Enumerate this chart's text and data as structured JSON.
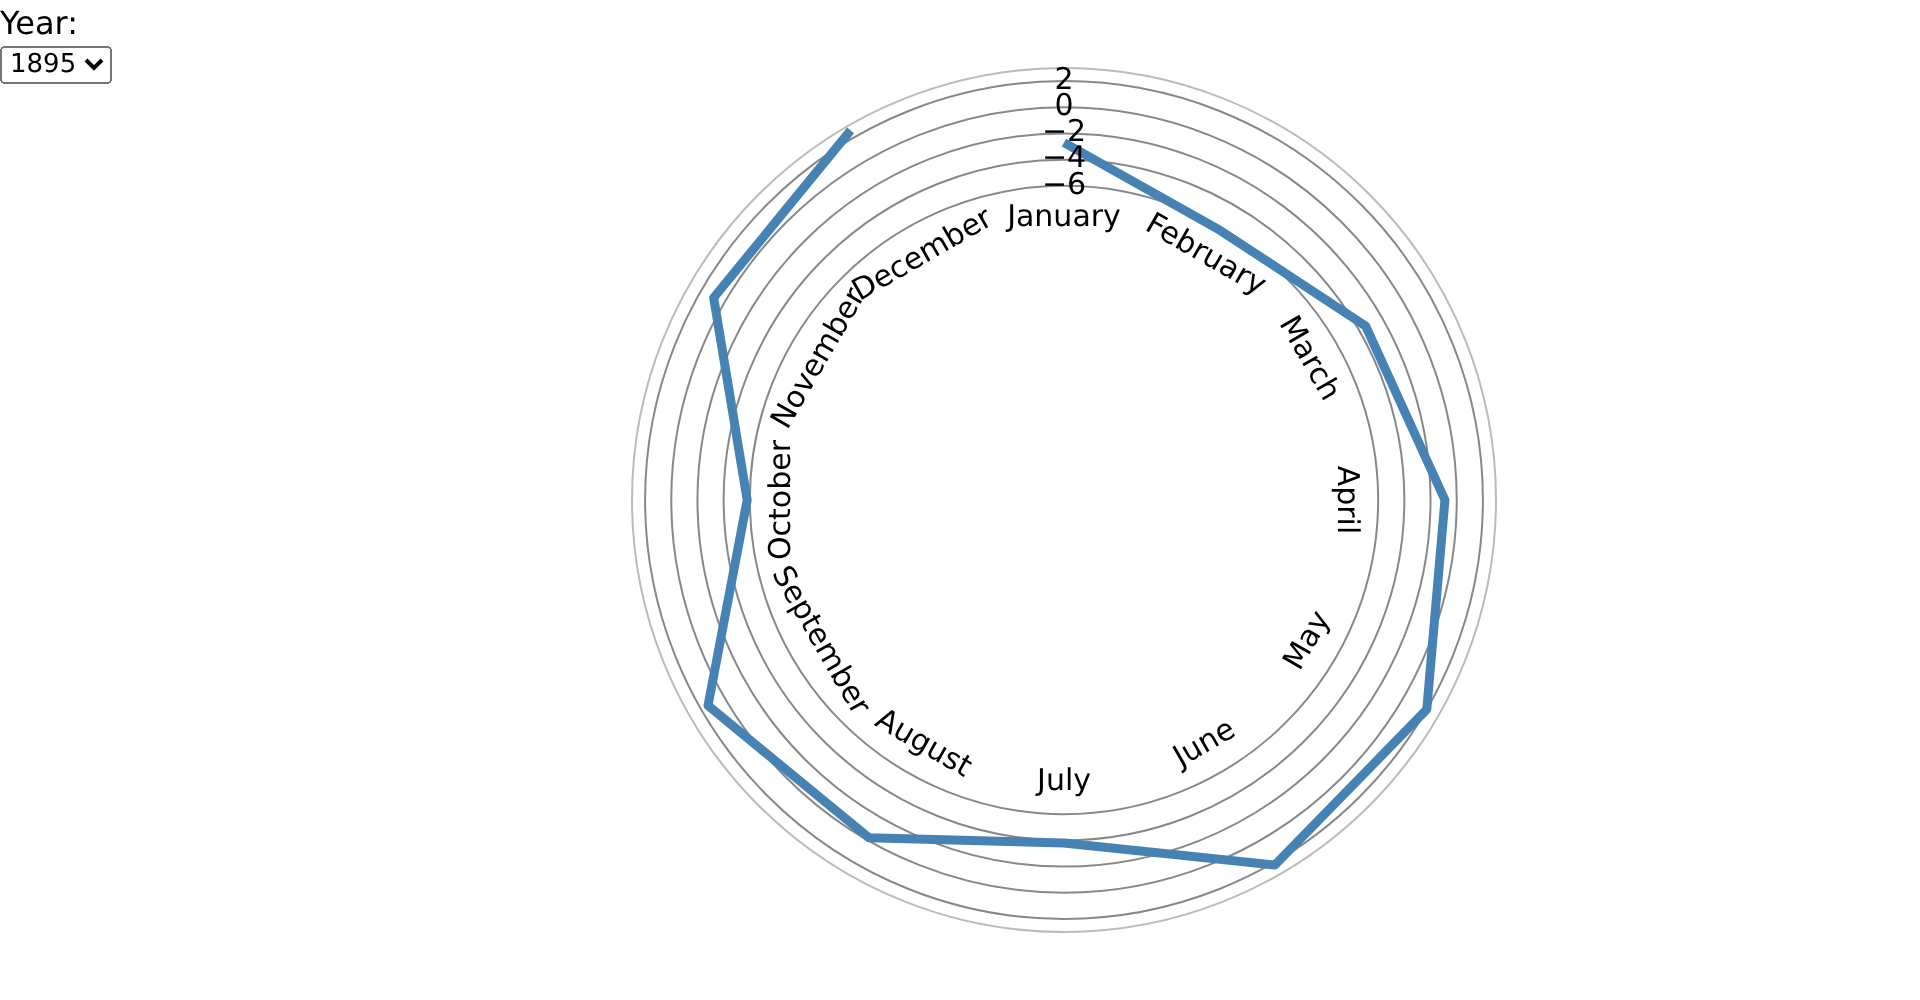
{
  "chart_data": {
    "type": "radar",
    "categories": [
      "January",
      "February",
      "March",
      "April",
      "May",
      "June",
      "July",
      "August",
      "September",
      "October",
      "November",
      "December"
    ],
    "series": [
      {
        "color": "#4682b4",
        "values": [
          -2.7,
          -6.2,
          -3.4,
          -0.9,
          2.0,
          2.2,
          -3.8,
          -0.2,
          1.4,
          -5.8,
          0.9,
          2.6
        ]
      }
    ],
    "ylim": [
      -30,
      3
    ],
    "yticks": [
      {
        "value": -6,
        "label": "−6"
      },
      {
        "value": -4,
        "label": "−4"
      },
      {
        "value": -2,
        "label": "−2"
      },
      {
        "value": 0,
        "label": "0"
      },
      {
        "value": 2,
        "label": "2"
      }
    ],
    "annotations": [
      "Year:",
      "1895"
    ],
    "legend": false
  }
}
